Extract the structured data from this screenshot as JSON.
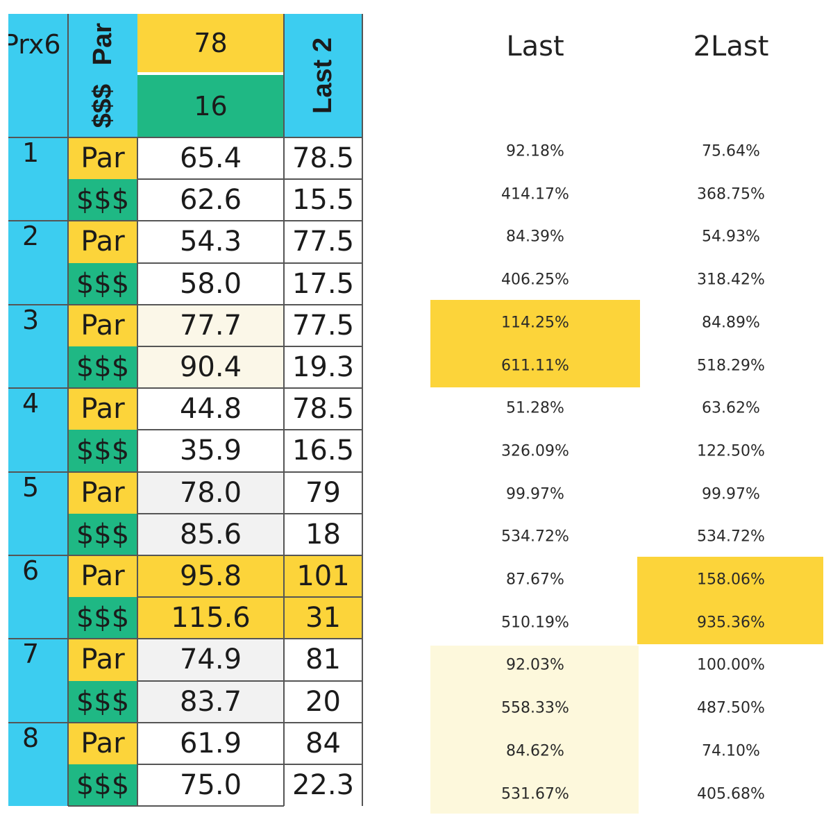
{
  "header": {
    "corner": "Prx6",
    "par_label": "Par",
    "money_label": "$$$",
    "par_value": "78",
    "money_value": "16",
    "last2_label": "Last 2"
  },
  "races": [
    {
      "num": "1",
      "par": "65.4",
      "par_last2": "78.5",
      "money": "62.6",
      "money_last2": "15.5",
      "par_last": "92.18%",
      "par_2last": "75.64%",
      "money_last": "414.17%",
      "money_2last": "368.75%"
    },
    {
      "num": "2",
      "par": "54.3",
      "par_last2": "77.5",
      "money": "58.0",
      "money_last2": "17.5",
      "par_last": "84.39%",
      "par_2last": "54.93%",
      "money_last": "406.25%",
      "money_2last": "318.42%"
    },
    {
      "num": "3",
      "par": "77.7",
      "par_last2": "77.5",
      "money": "90.4",
      "money_last2": "19.3",
      "par_last": "114.25%",
      "par_2last": "84.89%",
      "money_last": "611.11%",
      "money_2last": "518.29%"
    },
    {
      "num": "4",
      "par": "44.8",
      "par_last2": "78.5",
      "money": "35.9",
      "money_last2": "16.5",
      "par_last": "51.28%",
      "par_2last": "63.62%",
      "money_last": "326.09%",
      "money_2last": "122.50%"
    },
    {
      "num": "5",
      "par": "78.0",
      "par_last2": "79",
      "money": "85.6",
      "money_last2": "18",
      "par_last": "99.97%",
      "par_2last": "99.97%",
      "money_last": "534.72%",
      "money_2last": "534.72%"
    },
    {
      "num": "6",
      "par": "95.8",
      "par_last2": "101",
      "money": "115.6",
      "money_last2": "31",
      "par_last": "87.67%",
      "par_2last": "158.06%",
      "money_last": "510.19%",
      "money_2last": "935.36%"
    },
    {
      "num": "7",
      "par": "74.9",
      "par_last2": "81",
      "money": "83.7",
      "money_last2": "20",
      "par_last": "92.03%",
      "par_2last": "100.00%",
      "money_last": "558.33%",
      "money_2last": "487.50%"
    },
    {
      "num": "8",
      "par": "61.9",
      "par_last2": "84",
      "money": "75.0",
      "money_last2": "22.3",
      "par_last": "84.62%",
      "par_2last": "74.10%",
      "money_last": "531.67%",
      "money_2last": "405.68%"
    }
  ],
  "columns": {
    "last": "Last",
    "two_last": "2Last"
  },
  "colors": {
    "blue": "#3ccdf0",
    "yellow": "#fcd43a",
    "green": "#1fb884"
  }
}
